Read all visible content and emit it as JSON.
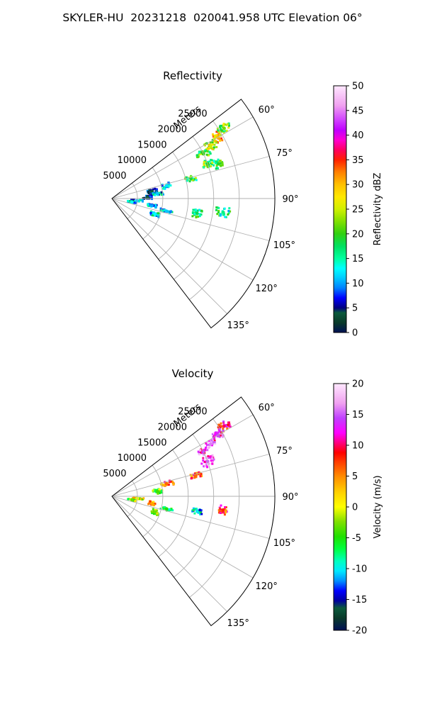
{
  "figure": {
    "title": "SKYLER-HU  20231218  020041.958 UTC Elevation 06°"
  },
  "chart_data": [
    {
      "type": "ppi-sector",
      "title": "Reflectivity",
      "range_label": "Meters",
      "range_ticks": [
        5000,
        10000,
        15000,
        20000,
        25000
      ],
      "range_max": 32000,
      "azimuth_ticks": [
        "60°",
        "75°",
        "90°",
        "105°",
        "120°",
        "135°"
      ],
      "azimuth_range": [
        52.5,
        142.5
      ],
      "colorbar": {
        "label": "Reflectivity dBZ",
        "min": 0,
        "max": 50,
        "ticks": [
          0,
          5,
          10,
          15,
          20,
          25,
          30,
          35,
          40,
          45,
          50
        ]
      },
      "echoes": [
        {
          "azimuth": 60,
          "range_m": 24000,
          "dbz": 30
        },
        {
          "azimuth": 62,
          "range_m": 22000,
          "dbz": 25
        },
        {
          "azimuth": 58,
          "range_m": 26000,
          "dbz": 22
        },
        {
          "azimuth": 64,
          "range_m": 20000,
          "dbz": 20
        },
        {
          "azimuth": 70,
          "range_m": 20000,
          "dbz": 20
        },
        {
          "azimuth": 72,
          "range_m": 22000,
          "dbz": 19
        },
        {
          "azimuth": 76,
          "range_m": 16000,
          "dbz": 19
        },
        {
          "azimuth": 77,
          "range_m": 11000,
          "dbz": 12
        },
        {
          "azimuth": 80,
          "range_m": 8000,
          "dbz": 4
        },
        {
          "azimuth": 84,
          "range_m": 9000,
          "dbz": 11
        },
        {
          "azimuth": 88,
          "range_m": 7000,
          "dbz": 4
        },
        {
          "azimuth": 95,
          "range_m": 5000,
          "dbz": 11
        },
        {
          "azimuth": 100,
          "range_m": 4000,
          "dbz": 13
        },
        {
          "azimuth": 100,
          "range_m": 8000,
          "dbz": 10
        },
        {
          "azimuth": 103,
          "range_m": 11000,
          "dbz": 11
        },
        {
          "azimuth": 100,
          "range_m": 17000,
          "dbz": 18
        },
        {
          "azimuth": 97,
          "range_m": 22000,
          "dbz": 16
        },
        {
          "azimuth": 110,
          "range_m": 9000,
          "dbz": 13
        }
      ]
    },
    {
      "type": "ppi-sector",
      "title": "Velocity",
      "range_label": "Meters",
      "range_ticks": [
        5000,
        10000,
        15000,
        20000,
        25000
      ],
      "range_max": 32000,
      "azimuth_ticks": [
        "60°",
        "75°",
        "90°",
        "105°",
        "120°",
        "135°"
      ],
      "azimuth_range": [
        52.5,
        142.5
      ],
      "colorbar": {
        "label": "Velocity (m/s)",
        "min": -20,
        "max": 20,
        "ticks": [
          -20,
          -15,
          -10,
          -5,
          0,
          5,
          10,
          15,
          20
        ]
      },
      "echoes": [
        {
          "azimuth": 60,
          "range_m": 24000,
          "velocity": 14
        },
        {
          "azimuth": 58,
          "range_m": 26000,
          "velocity": 10
        },
        {
          "azimuth": 62,
          "range_m": 22000,
          "velocity": 16
        },
        {
          "azimuth": 64,
          "range_m": 20000,
          "velocity": 14
        },
        {
          "azimuth": 70,
          "range_m": 20000,
          "velocity": 15
        },
        {
          "azimuth": 76,
          "range_m": 17000,
          "velocity": 6
        },
        {
          "azimuth": 77,
          "range_m": 11000,
          "velocity": 6
        },
        {
          "azimuth": 84,
          "range_m": 9000,
          "velocity": -4
        },
        {
          "azimuth": 95,
          "range_m": 5000,
          "velocity": 0
        },
        {
          "azimuth": 100,
          "range_m": 4000,
          "velocity": -3
        },
        {
          "azimuth": 100,
          "range_m": 8000,
          "velocity": 4
        },
        {
          "azimuth": 103,
          "range_m": 11000,
          "velocity": -5
        },
        {
          "azimuth": 100,
          "range_m": 17000,
          "velocity": -10
        },
        {
          "azimuth": 97,
          "range_m": 22000,
          "velocity": 8
        },
        {
          "azimuth": 110,
          "range_m": 9000,
          "velocity": -3
        }
      ]
    }
  ]
}
